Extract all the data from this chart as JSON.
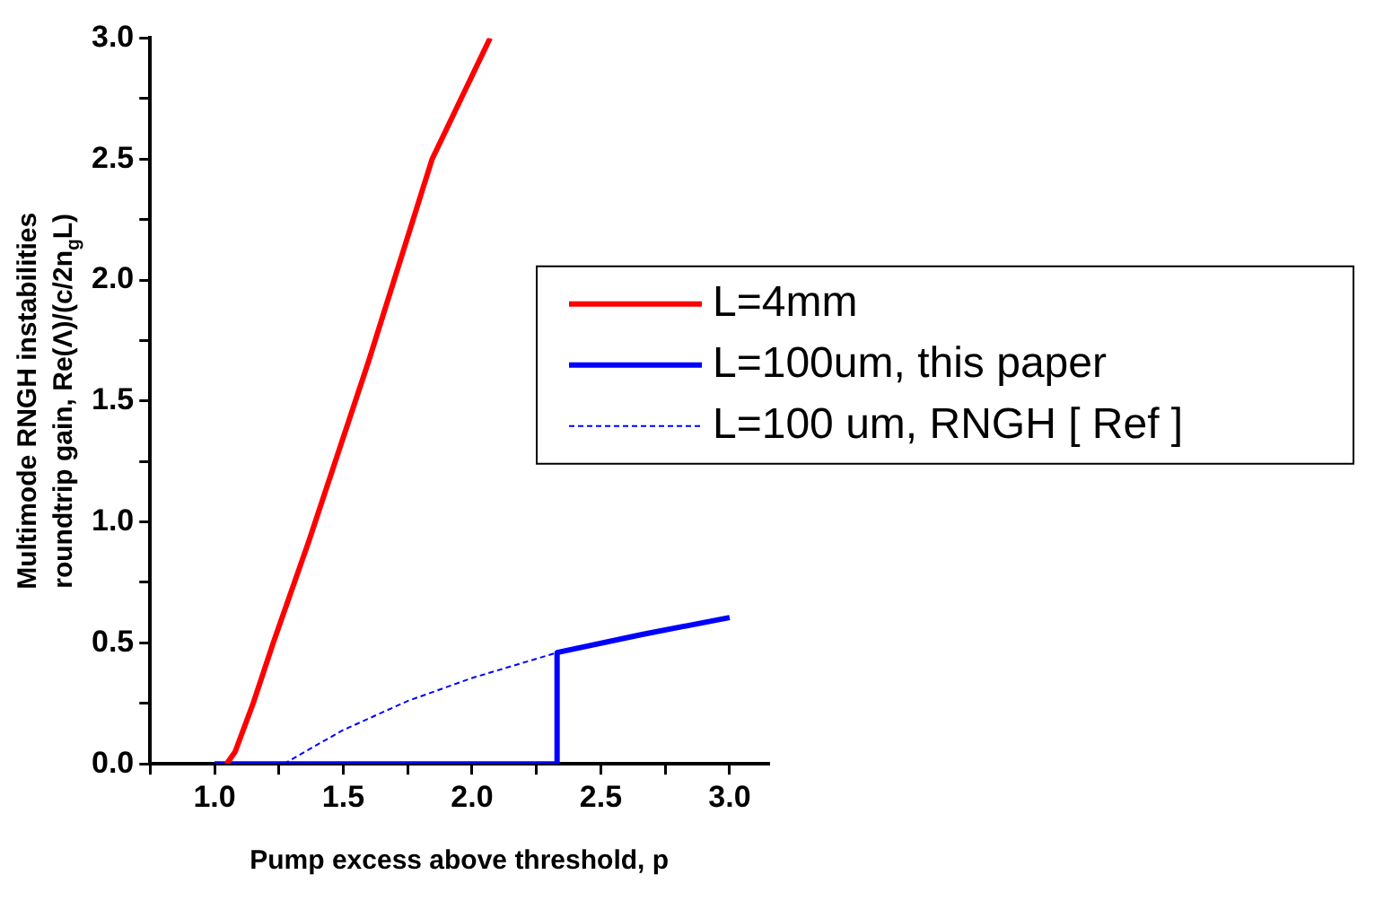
{
  "chart_data": {
    "type": "line",
    "xlabel": "Pump excess above threshold, p",
    "ylabel": "Multimode RNGH instabilities\nroundtrip gain, Re(Λ)/(c/2n$_{g}$L)",
    "xlim": [
      0.75,
      3.15
    ],
    "xticks": [
      {
        "value": 0.75,
        "label": null
      },
      {
        "value": 1.0,
        "label": "1.0"
      },
      {
        "value": 1.25,
        "label": null
      },
      {
        "value": 1.5,
        "label": "1.5"
      },
      {
        "value": 1.75,
        "label": null
      },
      {
        "value": 2.0,
        "label": "2.0"
      },
      {
        "value": 2.25,
        "label": null
      },
      {
        "value": 2.5,
        "label": "2.5"
      },
      {
        "value": 2.75,
        "label": null
      },
      {
        "value": 3.0,
        "label": "3.0"
      }
    ],
    "ylim": [
      0,
      3
    ],
    "yticks": [
      {
        "value": 0,
        "label": "0.0"
      },
      {
        "value": 0.25,
        "label": null
      },
      {
        "value": 0.5,
        "label": "0.5"
      },
      {
        "value": 0.75,
        "label": null
      },
      {
        "value": 1.0,
        "label": "1.0"
      },
      {
        "value": 1.25,
        "label": null
      },
      {
        "value": 1.5,
        "label": "1.5"
      },
      {
        "value": 1.75,
        "label": null
      },
      {
        "value": 2.0,
        "label": "2.0"
      },
      {
        "value": 2.25,
        "label": null
      },
      {
        "value": 2.5,
        "label": "2.5"
      },
      {
        "value": 2.75,
        "label": null
      },
      {
        "value": 3.0,
        "label": "3.0"
      }
    ],
    "legend": "right",
    "marker": "none",
    "series": [
      {
        "name": "L=4mm",
        "color": "#ff0000",
        "line_style": "solid",
        "x": [
          1.047,
          1.08,
          1.15,
          1.228,
          1.366,
          1.6,
          1.845,
          2.07
        ],
        "values": [
          0,
          0.05,
          0.25,
          0.5,
          0.92,
          1.67,
          2.5,
          3.0
        ]
      },
      {
        "name": "L=100um, this paper",
        "color": "#0000ff",
        "line_style": "solid",
        "x": [
          1.0,
          2.33,
          2.33,
          2.66,
          3.0
        ],
        "values": [
          0,
          0,
          0.46,
          0.535,
          0.605
        ]
      },
      {
        "name": "L=100 um, RNGH [ Ref ]",
        "color": "#0000ff",
        "line_style": "dashed",
        "x": [
          1.27,
          1.4,
          1.5,
          1.75,
          2.0,
          2.33,
          2.66,
          3.0
        ],
        "values": [
          0,
          0.08,
          0.14,
          0.26,
          0.355,
          0.46,
          0.535,
          0.6
        ]
      }
    ]
  }
}
